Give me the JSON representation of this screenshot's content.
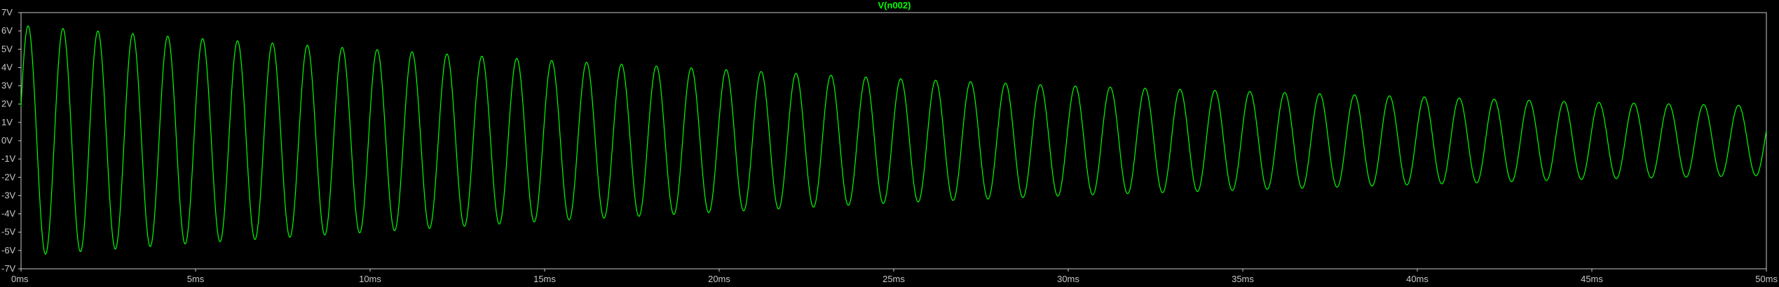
{
  "chart_data": {
    "type": "line",
    "title": "V(n002)",
    "xlabel": "",
    "ylabel": "",
    "x_unit": "ms",
    "y_unit": "V",
    "xlim": [
      0,
      50
    ],
    "ylim": [
      -7,
      7
    ],
    "x_ticks": [
      "0ms",
      "5ms",
      "10ms",
      "15ms",
      "20ms",
      "25ms",
      "30ms",
      "35ms",
      "40ms",
      "45ms",
      "50ms"
    ],
    "y_ticks": [
      "7V",
      "6V",
      "5V",
      "4V",
      "3V",
      "2V",
      "1V",
      "0V",
      "-1V",
      "-2V",
      "-3V",
      "-4V",
      "-5V",
      "-6V",
      "-7V"
    ],
    "grid": false,
    "series": [
      {
        "name": "V(n002)",
        "color": "#00ff00",
        "frequency_hz": 1000,
        "phase_rad": 0.3,
        "envelope_ms": [
          0,
          5,
          10,
          15,
          20,
          25,
          30,
          35,
          40,
          45,
          50
        ],
        "envelope_amplitude_V": [
          6.3,
          5.6,
          5.0,
          4.4,
          3.9,
          3.4,
          3.0,
          2.7,
          2.4,
          2.1,
          1.9
        ]
      }
    ],
    "colors": {
      "background": "#000000",
      "axis": "#c8c8c8",
      "title": "#00ff00"
    }
  }
}
